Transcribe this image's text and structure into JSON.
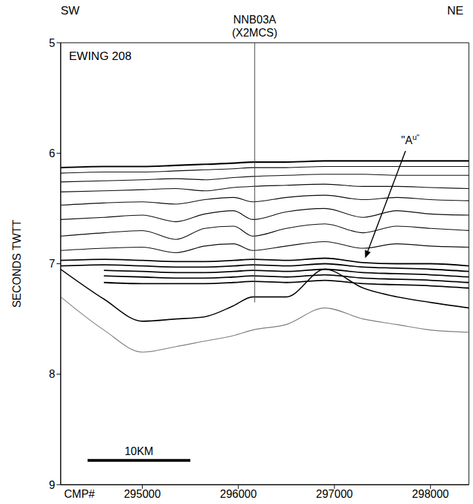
{
  "chart_data": {
    "type": "line",
    "corner_labels": {
      "left": "SW",
      "right": "NE"
    },
    "survey": "EWING 208",
    "xlabel": "CMP#",
    "ylabel": "SECONDS TWTT",
    "xlim": [
      294150,
      298400
    ],
    "xticks": [
      295000,
      296000,
      297000,
      298000
    ],
    "ylim": [
      5,
      9
    ],
    "yticks": [
      5,
      6,
      7,
      8,
      9
    ],
    "grid": false,
    "x": [
      294150,
      294600,
      295000,
      295350,
      295650,
      295950,
      296150,
      296500,
      296900,
      297300,
      297650,
      298000,
      298400
    ],
    "series": [
      {
        "color": "#000000",
        "values": [
          6.13,
          6.12,
          6.12,
          6.11,
          6.1,
          6.09,
          6.08,
          6.08,
          6.07,
          6.07,
          6.07,
          6.07,
          6.07
        ]
      },
      {
        "color": "#000000",
        "values": [
          6.18,
          6.17,
          6.17,
          6.16,
          6.15,
          6.14,
          6.13,
          6.13,
          6.12,
          6.12,
          6.12,
          6.12,
          6.12
        ]
      },
      {
        "color": "#000000",
        "values": [
          6.26,
          6.25,
          6.24,
          6.23,
          6.24,
          6.22,
          6.21,
          6.2,
          6.19,
          6.19,
          6.2,
          6.2,
          6.2
        ]
      },
      {
        "color": "#000000",
        "values": [
          6.35,
          6.34,
          6.33,
          6.32,
          6.34,
          6.31,
          6.3,
          6.29,
          6.28,
          6.3,
          6.3,
          6.31,
          6.32
        ]
      },
      {
        "color": "#000000",
        "values": [
          6.47,
          6.45,
          6.44,
          6.46,
          6.42,
          6.4,
          6.44,
          6.4,
          6.38,
          6.42,
          6.4,
          6.42,
          6.43
        ]
      },
      {
        "color": "#000000",
        "values": [
          6.6,
          6.58,
          6.56,
          6.62,
          6.55,
          6.52,
          6.6,
          6.53,
          6.5,
          6.58,
          6.52,
          6.55,
          6.56
        ]
      },
      {
        "color": "#000000",
        "values": [
          6.75,
          6.72,
          6.7,
          6.78,
          6.68,
          6.66,
          6.75,
          6.68,
          6.64,
          6.72,
          6.66,
          6.68,
          6.7
        ]
      },
      {
        "color": "#000000",
        "values": [
          6.88,
          6.86,
          6.85,
          6.9,
          6.84,
          6.82,
          6.88,
          6.84,
          6.8,
          6.86,
          6.82,
          6.84,
          6.85
        ]
      },
      {
        "color": "#000000",
        "values": [
          6.97,
          6.96,
          6.97,
          6.98,
          6.98,
          6.97,
          6.96,
          6.97,
          6.95,
          6.99,
          7.0,
          7.0,
          7.02
        ]
      },
      {
        "color": "#000000",
        "values": [
          7.02,
          7.01,
          7.02,
          7.03,
          7.03,
          7.02,
          7.01,
          7.02,
          7.0,
          7.03,
          7.04,
          7.05,
          7.07
        ]
      },
      {
        "color": "#000000",
        "values": [
          null,
          7.06,
          7.07,
          7.08,
          7.08,
          7.07,
          7.06,
          7.07,
          7.05,
          7.08,
          7.09,
          7.1,
          7.12
        ]
      },
      {
        "color": "#000000",
        "values": [
          null,
          7.11,
          7.12,
          7.13,
          7.13,
          7.12,
          7.11,
          7.12,
          7.1,
          7.13,
          7.14,
          7.15,
          7.17
        ]
      },
      {
        "color": "#000000",
        "values": [
          null,
          7.17,
          7.18,
          7.18,
          7.18,
          7.17,
          7.16,
          7.17,
          7.15,
          7.18,
          7.19,
          7.2,
          7.22
        ]
      },
      {
        "color": "#000000",
        "values": [
          7.05,
          7.32,
          7.52,
          7.5,
          7.48,
          7.38,
          7.3,
          7.3,
          7.05,
          7.22,
          7.3,
          7.35,
          7.4
        ]
      },
      {
        "color": "#777777",
        "values": [
          7.3,
          7.6,
          7.8,
          7.75,
          7.7,
          7.65,
          7.6,
          7.55,
          7.4,
          7.5,
          7.55,
          7.6,
          7.62
        ]
      }
    ],
    "crossing_line": {
      "text": [
        "NNB03A",
        "(X2MCS)"
      ],
      "x": 296170,
      "y": [
        5,
        7.35
      ]
    },
    "horizon_label": {
      "text": "\"A",
      "superscript": "u\"",
      "x": 297790,
      "y": 5.92,
      "arrow_x": [
        297740,
        297320
      ],
      "arrow_y": [
        5.98,
        6.95
      ]
    },
    "scale_bar": {
      "text": "10KM",
      "x": [
        294430,
        295500
      ],
      "y": 8.78
    }
  }
}
